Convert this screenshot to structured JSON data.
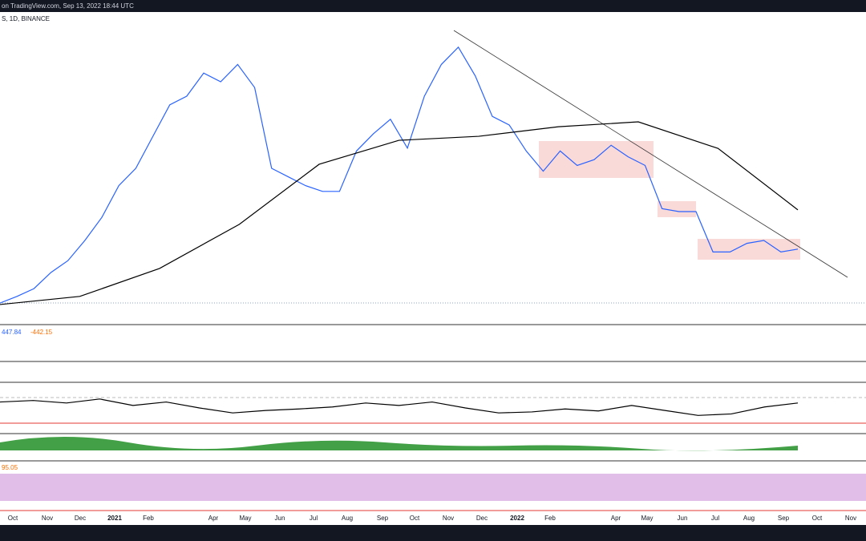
{
  "header": {
    "source": "on TradingView.com, Sep 13, 2022 18:44 UTC",
    "symbol": "S, 1D, BINANCE"
  },
  "indicators": {
    "macd": "447.84",
    "signal": "-442.15",
    "stoch": "95.05"
  },
  "time_axis": [
    "Oct",
    "Nov",
    "Dec",
    "2021",
    "Feb",
    "Apr",
    "May",
    "Jun",
    "Jul",
    "Aug",
    "Sep",
    "Oct",
    "Nov",
    "Dec",
    "2022",
    "Feb",
    "Apr",
    "May",
    "Jun",
    "Jul",
    "Aug",
    "Sep",
    "Oct",
    "Nov"
  ],
  "chart_data": [
    {
      "type": "line",
      "name": "price",
      "color": "#2962ff",
      "ylim": [
        0,
        100
      ],
      "values": [
        3.3,
        5.6,
        8.3,
        13.9,
        18,
        25,
        33,
        44,
        50,
        61,
        72,
        75,
        83,
        80,
        86,
        78,
        50,
        47,
        44,
        42,
        42,
        56,
        62,
        67,
        57,
        75,
        86,
        92,
        82,
        68,
        65,
        56,
        49,
        56,
        51,
        53,
        58,
        54,
        51,
        36,
        35,
        35,
        21,
        21,
        24,
        25,
        21,
        22
      ]
    },
    {
      "type": "line",
      "name": "moving-average",
      "color": "#000000",
      "ylim": [
        0,
        100
      ],
      "values": [
        2.8,
        5.6,
        15.3,
        30.6,
        51.4,
        59.7,
        61.1,
        64.4,
        66.1,
        56.9,
        35.6
      ]
    },
    {
      "type": "line",
      "name": "rsi",
      "color": "#000000",
      "ylim": [
        0,
        100
      ],
      "values": [
        62,
        65,
        60,
        68,
        55,
        62,
        50,
        40,
        45,
        48,
        52,
        60,
        55,
        62,
        50,
        40,
        42,
        48,
        44,
        55,
        45,
        35,
        38,
        52,
        60
      ]
    }
  ]
}
